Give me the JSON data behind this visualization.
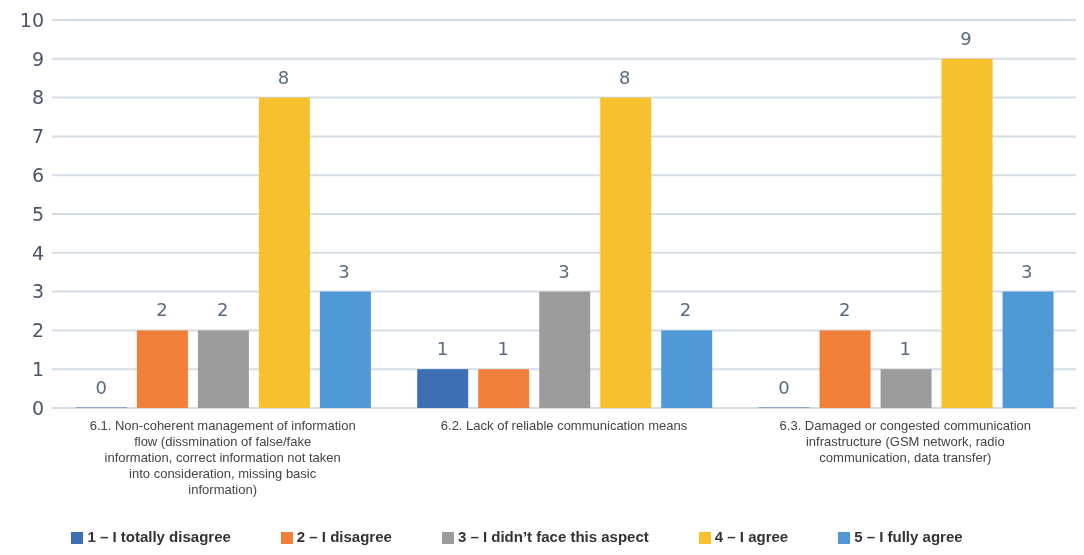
{
  "chart_data": {
    "type": "bar",
    "categories": [
      "6.1. Non-coherent management of information flow (dissmination of false/fake information, correct information not taken into consideration, missing basic information)",
      "6.2. Lack of reliable communication means",
      "6.3. Damaged or congested communication infrastructure (GSM network, radio communication, data transfer)"
    ],
    "series": [
      {
        "name": "1 – I totally disagree",
        "color": "#3d6fb5",
        "values": [
          0,
          1,
          0
        ]
      },
      {
        "name": "2 – I disagree",
        "color": "#f07f3a",
        "values": [
          2,
          1,
          2
        ]
      },
      {
        "name": "3 – I didn’t face this aspect",
        "color": "#9c9c9c",
        "values": [
          2,
          3,
          1
        ]
      },
      {
        "name": "4 – I agree",
        "color": "#f6c12c",
        "values": [
          8,
          8,
          9
        ]
      },
      {
        "name": "5 – I fully agree",
        "color": "#4f9ad6",
        "values": [
          3,
          2,
          3
        ]
      }
    ],
    "ylim": [
      0,
      10
    ],
    "yticks": [
      0,
      1,
      2,
      3,
      4,
      5,
      6,
      7,
      8,
      9,
      10
    ],
    "grid": "y",
    "legend": "bottom",
    "data_labels": true
  }
}
